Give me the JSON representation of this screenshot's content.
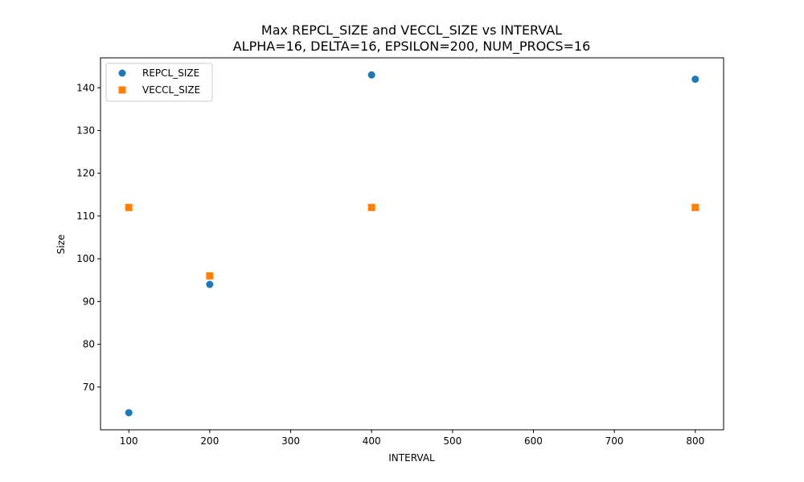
{
  "chart_data": {
    "type": "scatter",
    "title": "Max REPCL_SIZE and VECCL_SIZE vs INTERVAL",
    "subtitle": "ALPHA=16, DELTA=16, EPSILON=200, NUM_PROCS=16",
    "xlabel": "INTERVAL",
    "ylabel": "Size",
    "xlim": [
      65,
      835
    ],
    "ylim": [
      60,
      147
    ],
    "xticks": [
      100,
      200,
      300,
      400,
      500,
      600,
      700,
      800
    ],
    "yticks": [
      70,
      80,
      90,
      100,
      110,
      120,
      130,
      140
    ],
    "grid": false,
    "legend_position": "top-left",
    "series": [
      {
        "name": "REPCL_SIZE",
        "marker": "circle",
        "color": "#1f77b4",
        "points": [
          {
            "x": 100,
            "y": 64
          },
          {
            "x": 200,
            "y": 94
          },
          {
            "x": 400,
            "y": 143
          },
          {
            "x": 800,
            "y": 142
          }
        ]
      },
      {
        "name": "VECCL_SIZE",
        "marker": "square",
        "color": "#ff7f0e",
        "points": [
          {
            "x": 100,
            "y": 112
          },
          {
            "x": 200,
            "y": 96
          },
          {
            "x": 400,
            "y": 112
          },
          {
            "x": 800,
            "y": 112
          }
        ]
      }
    ]
  }
}
